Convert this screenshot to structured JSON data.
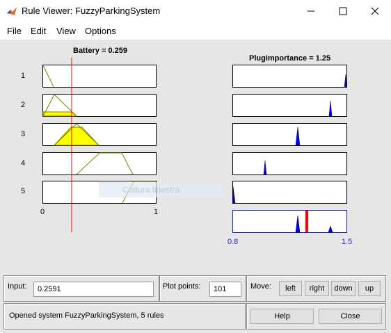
{
  "window": {
    "title": "Rule Viewer: FuzzyParkingSystem"
  },
  "menu": [
    "File",
    "Edit",
    "View",
    "Options"
  ],
  "inputs_header": "Battery = 0.259",
  "output_header": "PlugImportance = 1.25",
  "rule_numbers": [
    "1",
    "2",
    "3",
    "4",
    "5"
  ],
  "input_axis": {
    "min": "0",
    "max": "1"
  },
  "output_axis": {
    "min": "0.8",
    "max": "1.5"
  },
  "battery_value": 0.259,
  "plug_value": 1.25,
  "ghost_tooltip": "Cattura finestra",
  "controls": {
    "input_label": "Input:",
    "input_value": "0.2591",
    "plot_points_label": "Plot points:",
    "plot_points_value": "101",
    "move_label": "Move:",
    "left": "left",
    "right": "right",
    "down": "down",
    "up": "up",
    "help": "Help",
    "close": "Close"
  },
  "status": "Opened system FuzzyParkingSystem, 5 rules",
  "colors": {
    "fill_yellow": "#ffff00",
    "fill_blue": "#0000ff",
    "indicator_red": "#ff0000",
    "output_border": "#1f1fcf"
  }
}
